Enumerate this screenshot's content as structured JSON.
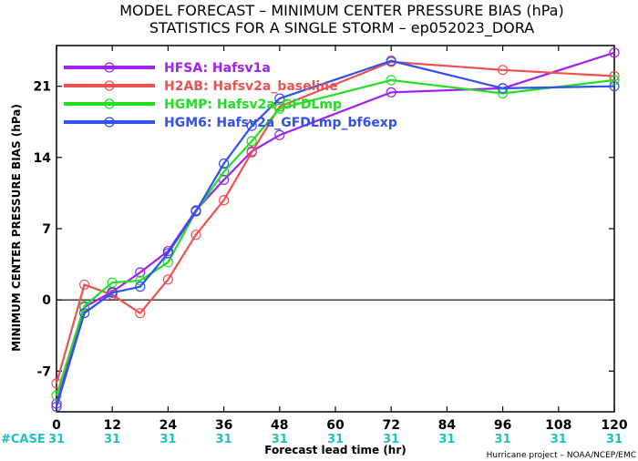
{
  "title_line1": "MODEL FORECAST – MINIMUM CENTER PRESSURE BIAS (hPa)",
  "title_line2": "STATISTICS FOR A SINGLE STORM – ep052023_DORA",
  "case_label": "#CASE",
  "case_counts": [
    "31",
    "31",
    "31",
    "31",
    "31",
    "31",
    "31",
    "31",
    "31",
    "31",
    "31"
  ],
  "credit": "Hurricane project – NOAA/NCEP/EMC",
  "chart_data": {
    "type": "line",
    "title": "MODEL FORECAST – MINIMUM CENTER PRESSURE BIAS (hPa)",
    "subtitle": "STATISTICS FOR A SINGLE STORM – ep052023_DORA",
    "xlabel": "Forecast lead time (hr)",
    "ylabel": "MINIMUM CENTER PRESSURE BIAS (hPa)",
    "xlim": [
      0,
      120
    ],
    "ylim": [
      -11,
      25
    ],
    "xticks": [
      0,
      12,
      24,
      36,
      48,
      60,
      72,
      84,
      96,
      108,
      120
    ],
    "yticks": [
      -7,
      0,
      7,
      14,
      21
    ],
    "grid": false,
    "legend_position": "top-left",
    "zero_line": true,
    "series": [
      {
        "name": "HFSA: Hafsv1a",
        "color": "#a020f0",
        "x": [
          0,
          6,
          12,
          18,
          24,
          30,
          36,
          42,
          48,
          72,
          96,
          120
        ],
        "y": [
          -10.2,
          -0.7,
          0.8,
          2.7,
          4.8,
          8.8,
          11.8,
          14.6,
          16.2,
          20.4,
          20.8,
          24.3
        ]
      },
      {
        "name": "H2AB: Hafsv2a_baseline",
        "color": "#f05050",
        "x": [
          0,
          6,
          12,
          18,
          24,
          30,
          36,
          42,
          48,
          72,
          96,
          120
        ],
        "y": [
          -8.2,
          1.5,
          0.5,
          -1.3,
          2.0,
          6.4,
          9.8,
          14.5,
          19.0,
          23.4,
          22.6,
          22.0
        ]
      },
      {
        "name": "HGMP: Hafsv2a_GFDLmp",
        "color": "#20e020",
        "x": [
          0,
          6,
          12,
          18,
          24,
          30,
          36,
          42,
          48,
          72,
          96,
          120
        ],
        "y": [
          -9.4,
          -0.6,
          1.7,
          1.9,
          3.7,
          8.7,
          12.6,
          15.6,
          18.8,
          21.6,
          20.3,
          21.6
        ]
      },
      {
        "name": "HGM6: Hafsv2a_GFDLmp_bf6exp",
        "color": "#3050f0",
        "x": [
          0,
          6,
          12,
          18,
          24,
          30,
          36,
          42,
          48,
          72,
          96,
          120
        ],
        "y": [
          -10.5,
          -1.3,
          0.7,
          1.3,
          4.6,
          8.7,
          13.4,
          17.1,
          19.8,
          23.5,
          20.8,
          21.0
        ]
      }
    ]
  }
}
